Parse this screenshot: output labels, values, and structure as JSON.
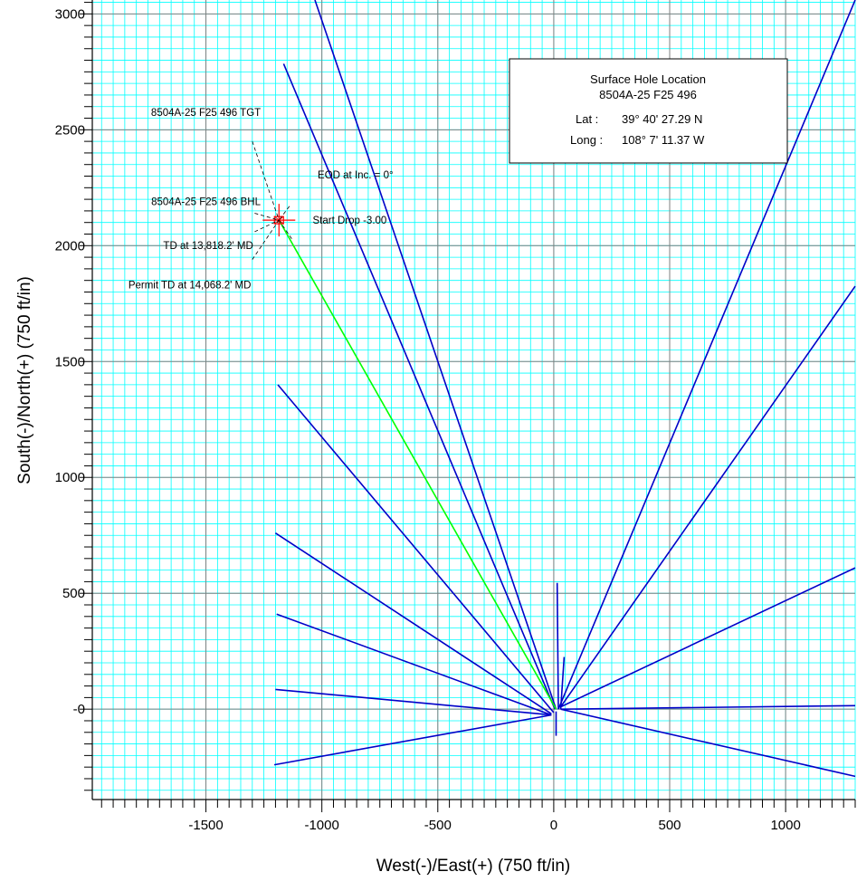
{
  "chart_data": {
    "type": "line",
    "title": "",
    "xlabel": "West(-)/East(+) (750 ft/in)",
    "ylabel": "South(-)/North(+) (750 ft/in)",
    "xlim": [
      -1990,
      1300
    ],
    "ylim": [
      -390,
      3060
    ],
    "x_ticks": [
      {
        "value": -1500,
        "label": "-1500"
      },
      {
        "value": -1000,
        "label": "-1000"
      },
      {
        "value": -500,
        "label": "-500"
      },
      {
        "value": 0,
        "label": "0"
      },
      {
        "value": 500,
        "label": "500"
      },
      {
        "value": 1000,
        "label": "1000"
      }
    ],
    "y_ticks": [
      {
        "value": 0,
        "label": "-0"
      },
      {
        "value": 500,
        "label": "500"
      },
      {
        "value": 1000,
        "label": "1000"
      },
      {
        "value": 1500,
        "label": "1500"
      },
      {
        "value": 2000,
        "label": "2000"
      },
      {
        "value": 2500,
        "label": "2500"
      },
      {
        "value": 3000,
        "label": "3000"
      }
    ],
    "grid": true,
    "colors": {
      "minor_grid": "#00ffff",
      "major_grid": "#808080",
      "offset_wells": "#0000c8",
      "planned_well": "#00ff00",
      "target": "#ff0000"
    },
    "series": [
      {
        "color": "#00ff00",
        "points": [
          [
            10,
            0
          ],
          [
            -1185,
            2110
          ]
        ]
      },
      {
        "color": "#0000c8",
        "points": [
          [
            10,
            0
          ],
          [
            -1030,
            3060
          ]
        ]
      },
      {
        "color": "#0000c8",
        "points": [
          [
            5,
            0
          ],
          [
            -1165,
            2785
          ]
        ]
      },
      {
        "color": "#0000c8",
        "points": [
          [
            0,
            -15
          ],
          [
            -1190,
            1400
          ]
        ]
      },
      {
        "color": "#0000c8",
        "points": [
          [
            -10,
            -20
          ],
          [
            -1200,
            760
          ]
        ]
      },
      {
        "color": "#0000c8",
        "points": [
          [
            -10,
            -25
          ],
          [
            -1195,
            410
          ]
        ]
      },
      {
        "color": "#0000c8",
        "points": [
          [
            -10,
            -25
          ],
          [
            -1200,
            85
          ]
        ]
      },
      {
        "color": "#0000c8",
        "points": [
          [
            -10,
            -25
          ],
          [
            -1205,
            -240
          ]
        ]
      },
      {
        "color": "#0000c8",
        "points": [
          [
            20,
            0
          ],
          [
            1300,
            3060
          ]
        ]
      },
      {
        "color": "#0000c8",
        "points": [
          [
            30,
            10
          ],
          [
            1300,
            1825
          ]
        ]
      },
      {
        "color": "#0000c8",
        "points": [
          [
            30,
            10
          ],
          [
            1300,
            610
          ]
        ]
      },
      {
        "color": "#0000c8",
        "points": [
          [
            30,
            0
          ],
          [
            1300,
            15
          ]
        ]
      },
      {
        "color": "#0000c8",
        "points": [
          [
            30,
            0
          ],
          [
            1300,
            -290
          ]
        ]
      },
      {
        "color": "#0000c8",
        "points": [
          [
            20,
            0
          ],
          [
            15,
            545
          ]
        ]
      },
      {
        "color": "#0000c8",
        "points": [
          [
            30,
            0
          ],
          [
            45,
            225
          ]
        ]
      },
      {
        "color": "#0000c8",
        "points": [
          [
            10,
            -10
          ],
          [
            10,
            -115
          ]
        ]
      }
    ],
    "target": {
      "x": -1185,
      "y": 2110
    },
    "annotations": [
      {
        "text": "8504A-25 F25 496 TGT",
        "anchor_x": -1500,
        "anchor_y": 2560,
        "end_x": -1300,
        "end_y": 2450
      },
      {
        "text": "8504A-25 F25 496 BHL",
        "anchor_x": -1500,
        "anchor_y": 2175,
        "end_x": -1290,
        "end_y": 2140
      },
      {
        "text": "TD at 13,818.2' MD",
        "anchor_x": -1490,
        "anchor_y": 1985,
        "end_x": -1290,
        "end_y": 2060
      },
      {
        "text": "Permit TD at 14,068.2' MD",
        "anchor_x": -1570,
        "anchor_y": 1815,
        "end_x": -1300,
        "end_y": 1940
      },
      {
        "text": "EOD at Inc. = 0°",
        "anchor_x": -855,
        "anchor_y": 2290,
        "end_x": -1140,
        "end_y": 2170
      },
      {
        "text": "Start Drop -3.00",
        "anchor_x": -880,
        "anchor_y": 2095,
        "end_x": -1130,
        "end_y": 2030
      }
    ]
  },
  "info_box": {
    "title": "Surface Hole Location",
    "well": "8504A-25 F25 496",
    "lat_label": "Lat :",
    "lat_value": "39° 40' 27.29 N",
    "long_label": "Long :",
    "long_value": "108° 7' 11.37 W"
  }
}
